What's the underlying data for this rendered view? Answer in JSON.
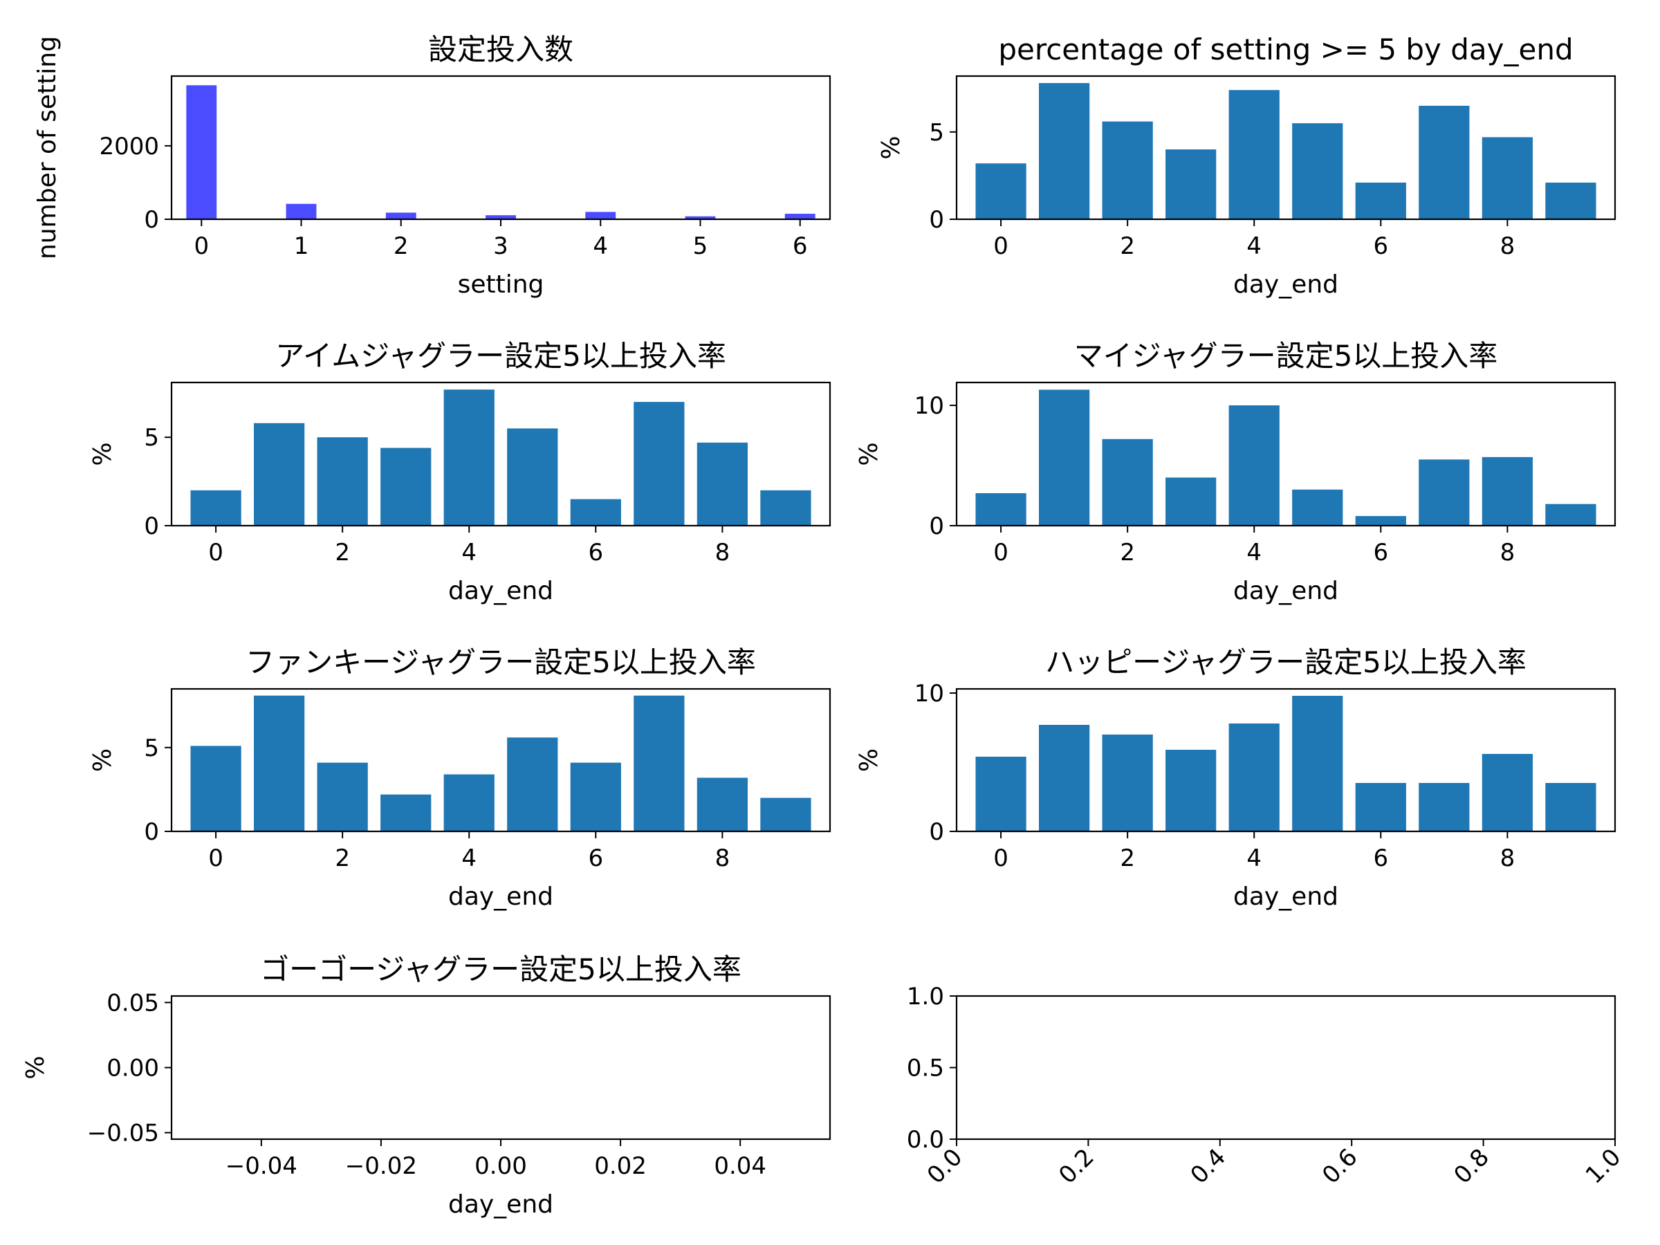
{
  "chart_data": [
    {
      "id": "setting-count",
      "type": "bar",
      "title": "設定投入数",
      "xlabel": "setting",
      "ylabel": "number of setting",
      "x": [
        0,
        1,
        2,
        3,
        4,
        5,
        6
      ],
      "values": [
        3650,
        420,
        180,
        110,
        200,
        80,
        150
      ],
      "bar_color": "#4b4bff",
      "xlim": [
        -0.3,
        6.3
      ],
      "ylim": [
        0,
        3900
      ],
      "xticks": [
        "0",
        "1",
        "2",
        "3",
        "4",
        "5",
        "6"
      ],
      "yticks": [
        "0",
        "2000"
      ]
    },
    {
      "id": "pct-overall",
      "type": "bar",
      "title": "percentage of setting >= 5 by day_end",
      "xlabel": "day_end",
      "ylabel": "%",
      "x": [
        0,
        1,
        2,
        3,
        4,
        5,
        6,
        7,
        8,
        9
      ],
      "values": [
        3.2,
        7.8,
        5.6,
        4.0,
        7.4,
        5.5,
        2.1,
        6.5,
        4.7,
        2.1
      ],
      "bar_color": "#1f77b4",
      "xlim": [
        -0.7,
        9.7
      ],
      "ylim": [
        0,
        8.2
      ],
      "xticks": [
        "0",
        "2",
        "4",
        "6",
        "8"
      ],
      "yticks": [
        "0",
        "5"
      ]
    },
    {
      "id": "pct-aim",
      "type": "bar",
      "title": "アイムジャグラー設定5以上投入率",
      "xlabel": "day_end",
      "ylabel": "%",
      "x": [
        0,
        1,
        2,
        3,
        4,
        5,
        6,
        7,
        8,
        9
      ],
      "values": [
        2.0,
        5.8,
        5.0,
        4.4,
        7.7,
        5.5,
        1.5,
        7.0,
        4.7,
        2.0
      ],
      "bar_color": "#1f77b4",
      "xlim": [
        -0.7,
        9.7
      ],
      "ylim": [
        0,
        8.1
      ],
      "xticks": [
        "0",
        "2",
        "4",
        "6",
        "8"
      ],
      "yticks": [
        "0",
        "5"
      ]
    },
    {
      "id": "pct-my",
      "type": "bar",
      "title": "マイジャグラー設定5以上投入率",
      "xlabel": "day_end",
      "ylabel": "%",
      "x": [
        0,
        1,
        2,
        3,
        4,
        5,
        6,
        7,
        8,
        9
      ],
      "values": [
        2.7,
        11.3,
        7.2,
        4.0,
        10.0,
        3.0,
        0.8,
        5.5,
        5.7,
        1.8
      ],
      "bar_color": "#1f77b4",
      "xlim": [
        -0.7,
        9.7
      ],
      "ylim": [
        0,
        11.9
      ],
      "xticks": [
        "0",
        "2",
        "4",
        "6",
        "8"
      ],
      "yticks": [
        "0",
        "10"
      ]
    },
    {
      "id": "pct-funky",
      "type": "bar",
      "title": "ファンキージャグラー設定5以上投入率",
      "xlabel": "day_end",
      "ylabel": "%",
      "x": [
        0,
        1,
        2,
        3,
        4,
        5,
        6,
        7,
        8,
        9
      ],
      "values": [
        5.1,
        8.1,
        4.1,
        2.2,
        3.4,
        5.6,
        4.1,
        8.1,
        3.2,
        2.0
      ],
      "bar_color": "#1f77b4",
      "xlim": [
        -0.7,
        9.7
      ],
      "ylim": [
        0,
        8.5
      ],
      "xticks": [
        "0",
        "2",
        "4",
        "6",
        "8"
      ],
      "yticks": [
        "0",
        "5"
      ]
    },
    {
      "id": "pct-happy",
      "type": "bar",
      "title": "ハッピージャグラー設定5以上投入率",
      "xlabel": "day_end",
      "ylabel": "%",
      "x": [
        0,
        1,
        2,
        3,
        4,
        5,
        6,
        7,
        8,
        9
      ],
      "values": [
        5.4,
        7.7,
        7.0,
        5.9,
        7.8,
        9.8,
        3.5,
        3.5,
        5.6,
        3.5
      ],
      "bar_color": "#1f77b4",
      "xlim": [
        -0.7,
        9.7
      ],
      "ylim": [
        0,
        10.3
      ],
      "xticks": [
        "0",
        "2",
        "4",
        "6",
        "8"
      ],
      "yticks": [
        "0",
        "10"
      ]
    },
    {
      "id": "pct-gogo",
      "type": "bar",
      "title": "ゴーゴージャグラー設定5以上投入率",
      "xlabel": "day_end",
      "ylabel": "%",
      "x": [],
      "values": [],
      "bar_color": "#1f77b4",
      "xlim": [
        -0.055,
        0.055
      ],
      "ylim": [
        -0.055,
        0.055
      ],
      "xticks": [
        "−0.04",
        "−0.02",
        "0.00",
        "0.02",
        "0.04"
      ],
      "yticks": [
        "−0.05",
        "0.00",
        "0.05"
      ]
    },
    {
      "id": "empty-axes",
      "type": "bar",
      "title": "",
      "xlabel": "",
      "ylabel": "",
      "x": [],
      "values": [],
      "bar_color": "#1f77b4",
      "xlim": [
        0,
        1
      ],
      "ylim": [
        0,
        1
      ],
      "xticks": [
        "0.0",
        "0.2",
        "0.4",
        "0.6",
        "0.8",
        "1.0"
      ],
      "yticks": [
        "0.0",
        "0.5",
        "1.0"
      ],
      "xtick_rotation": 45
    }
  ]
}
